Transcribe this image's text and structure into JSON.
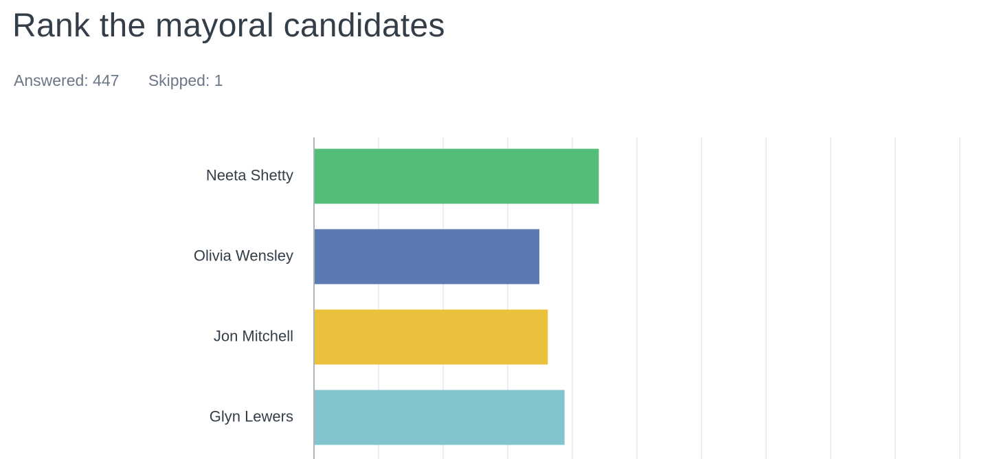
{
  "header": {
    "title": "Rank the mayoral candidates",
    "answered": "Answered: 447",
    "skipped": "Skipped: 1"
  },
  "chart_data": {
    "type": "bar",
    "orientation": "horizontal",
    "categories": [
      "Neeta Shetty",
      "Olivia Wensley",
      "Jon Mitchell",
      "Glyn Lewers"
    ],
    "values": [
      4.41,
      3.49,
      3.62,
      3.88
    ],
    "xlim": [
      0,
      10
    ],
    "grid": true,
    "colors": [
      "#53bd78",
      "#5b7ab2",
      "#ebc03c",
      "#83c5cd"
    ]
  }
}
